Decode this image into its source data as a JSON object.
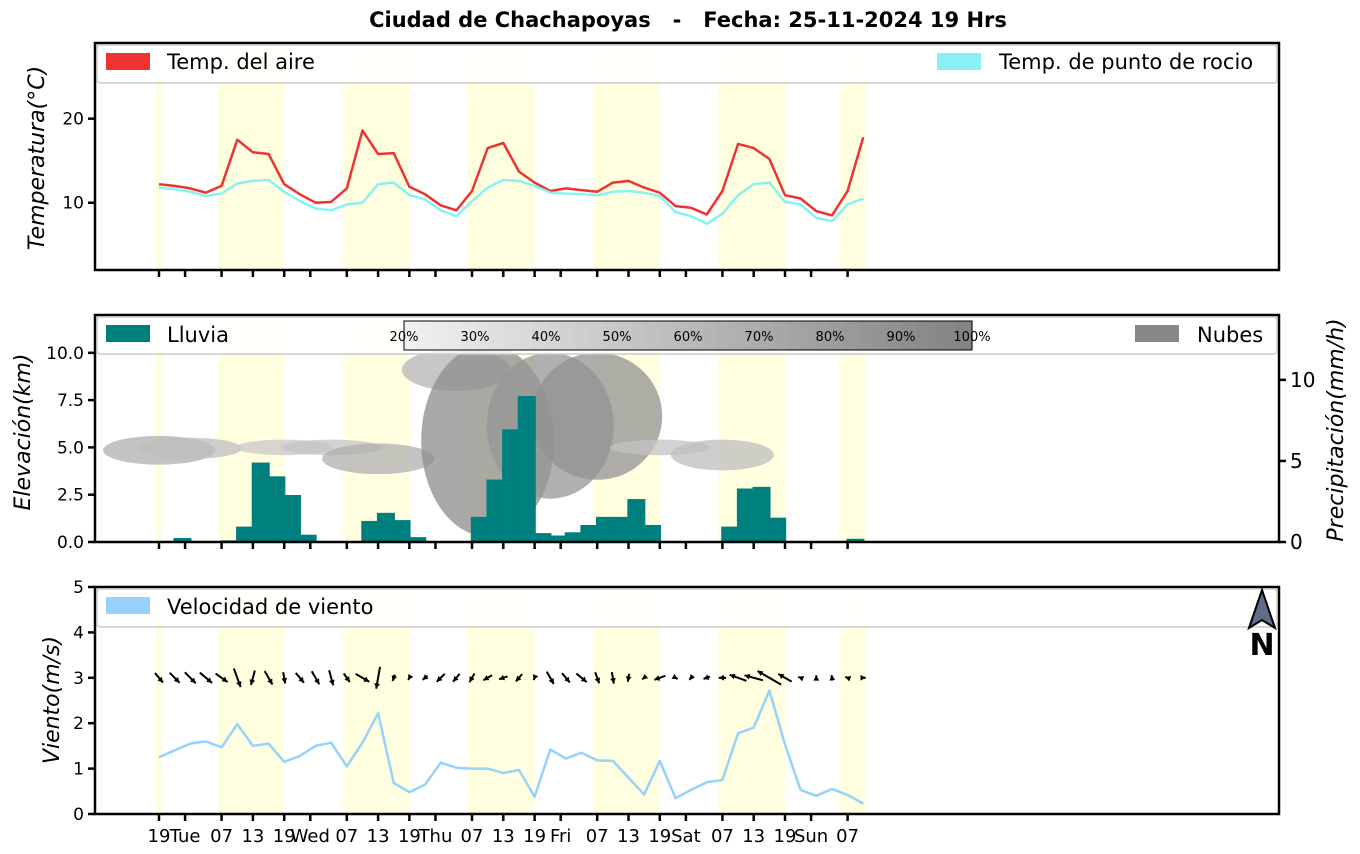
{
  "title": "Ciudad de Chachapoyas   -   Fecha: 25-11-2024 19 Hrs",
  "colors": {
    "temp_air": "#ee3333",
    "temp_dew": "#88f2f2",
    "rain": "#007f7f",
    "clouds": "#888888",
    "wind": "#96d2fa",
    "daylight": "#ffffe0"
  },
  "north_label": "N",
  "x_ticks": [
    "19",
    "Tue",
    "07",
    "13",
    "19",
    "Wed",
    "07",
    "13",
    "19",
    "Thu",
    "07",
    "13",
    "19",
    "Fri",
    "07",
    "13",
    "19",
    "Sat",
    "07",
    "13",
    "19",
    "Sun",
    "07"
  ],
  "chart_data": [
    {
      "type": "line",
      "ylabel": "Temperatura(°C)",
      "ylim": [
        2,
        29
      ],
      "yticks": [
        10,
        20
      ],
      "legend": [
        "Temp. del aire",
        "Temp. de punto de rocio"
      ],
      "x_step_hours": 3,
      "series": [
        {
          "name": "Temp. del aire",
          "values": [
            12.2,
            12,
            11.7,
            11.2,
            12,
            17.5,
            16,
            15.8,
            12.2,
            11,
            10,
            10.1,
            11.7,
            18.6,
            15.8,
            15.9,
            11.9,
            11,
            9.7,
            9.1,
            11.4,
            16.5,
            17.1,
            13.7,
            12.4,
            11.4,
            11.7,
            11.5,
            11.3,
            12.4,
            12.6,
            11.8,
            11.2,
            9.6,
            9.4,
            8.6,
            11.4,
            17,
            16.5,
            15.2,
            10.9,
            10.5,
            9,
            8.5,
            11.4,
            17.8
          ]
        },
        {
          "name": "Temp. de punto de rocio",
          "values": [
            11.8,
            11.6,
            11.3,
            10.8,
            11.1,
            12.3,
            12.6,
            12.7,
            11.3,
            10.2,
            9.3,
            9.1,
            9.8,
            10,
            12.2,
            12.4,
            10.9,
            10.4,
            9.1,
            8.4,
            10.2,
            11.8,
            12.7,
            12.6,
            12,
            11.2,
            11.1,
            11,
            10.9,
            11.3,
            11.4,
            11.2,
            10.8,
            8.9,
            8.4,
            7.5,
            8.7,
            10.9,
            12.2,
            12.4,
            10.1,
            9.8,
            8.2,
            7.8,
            9.8,
            10.5
          ]
        }
      ]
    },
    {
      "type": "bar",
      "ylabel": "Elevación(km)",
      "ylim": [
        0,
        12
      ],
      "yticks": [
        "0.0",
        "2.5",
        "5.0",
        "7.5",
        "10.0"
      ],
      "ylabel_right": "Precipitación(mm/h)",
      "ylim_right": [
        0,
        14
      ],
      "yticks_right": [
        0,
        5,
        10
      ],
      "legend": [
        "Lluvia",
        "Nubes"
      ],
      "cloud_colorbar": [
        "20%",
        "30%",
        "40%",
        "50%",
        "60%",
        "70%",
        "80%",
        "90%",
        "100%"
      ],
      "series": [
        {
          "name": "Lluvia",
          "values": [
            0,
            0.25,
            0.05,
            0.05,
            0.1,
            0.95,
            4.9,
            4.05,
            2.9,
            0.45,
            0.05,
            0.05,
            0.05,
            1.3,
            1.8,
            1.35,
            0.3,
            0,
            0,
            0,
            1.55,
            3.85,
            6.95,
            9,
            0.55,
            0.4,
            0.6,
            1.05,
            1.55,
            1.55,
            2.65,
            1.05,
            0,
            0,
            0,
            0,
            0.95,
            3.3,
            3.4,
            1.5,
            0,
            0,
            0,
            0,
            0.2
          ]
        }
      ],
      "clouds": [
        {
          "hour": 0,
          "bottom_km": 4.3,
          "top_km": 5.4,
          "cover": 0.6
        },
        {
          "hour": 6,
          "bottom_km": 4.6,
          "top_km": 5.3,
          "cover": 0.45
        },
        {
          "hour": 24,
          "bottom_km": 4.8,
          "top_km": 5.2,
          "cover": 0.35
        },
        {
          "hour": 33,
          "bottom_km": 4.8,
          "top_km": 5.2,
          "cover": 0.4
        },
        {
          "hour": 42,
          "bottom_km": 3.8,
          "top_km": 5.0,
          "cover": 0.6
        },
        {
          "hour": 57,
          "bottom_km": 8.2,
          "top_km": 10.0,
          "cover": 0.55
        },
        {
          "hour": 63,
          "bottom_km": 0.5,
          "top_km": 10.2,
          "cover": 0.95
        },
        {
          "hour": 75,
          "bottom_km": 2.5,
          "top_km": 9.8,
          "cover": 0.85
        },
        {
          "hour": 84,
          "bottom_km": 3.5,
          "top_km": 9.8,
          "cover": 0.9
        },
        {
          "hour": 96,
          "bottom_km": 4.8,
          "top_km": 5.2,
          "cover": 0.4
        },
        {
          "hour": 108,
          "bottom_km": 4.0,
          "top_km": 5.2,
          "cover": 0.45
        }
      ]
    },
    {
      "type": "line",
      "ylabel": "Viento(m/s)",
      "ylim": [
        0,
        5
      ],
      "yticks": [
        0,
        1,
        2,
        3,
        4,
        5
      ],
      "legend": [
        "Velocidad de viento"
      ],
      "series": [
        {
          "name": "Velocidad de viento",
          "values": [
            1.25,
            1.4,
            1.55,
            1.6,
            1.47,
            1.98,
            1.5,
            1.55,
            1.15,
            1.28,
            1.5,
            1.57,
            1.05,
            1.57,
            2.22,
            0.68,
            0.48,
            0.65,
            1.13,
            1.02,
            1,
            1,
            0.9,
            0.97,
            0.38,
            1.42,
            1.22,
            1.35,
            1.18,
            1.17,
            0.8,
            0.43,
            1.17,
            0.35,
            0.53,
            0.7,
            0.75,
            1.78,
            1.9,
            2.72,
            1.53,
            0.53,
            0.4,
            0.55,
            0.42,
            0.23
          ]
        }
      ],
      "wind_direction_deg": [
        140,
        135,
        135,
        130,
        125,
        160,
        195,
        150,
        170,
        140,
        150,
        165,
        145,
        120,
        190,
        200,
        210,
        230,
        225,
        220,
        210,
        240,
        250,
        220,
        200,
        150,
        140,
        130,
        160,
        170,
        190,
        230,
        250,
        120,
        220,
        250,
        270,
        290,
        285,
        300,
        300,
        290,
        0,
        350,
        290,
        90
      ]
    }
  ]
}
